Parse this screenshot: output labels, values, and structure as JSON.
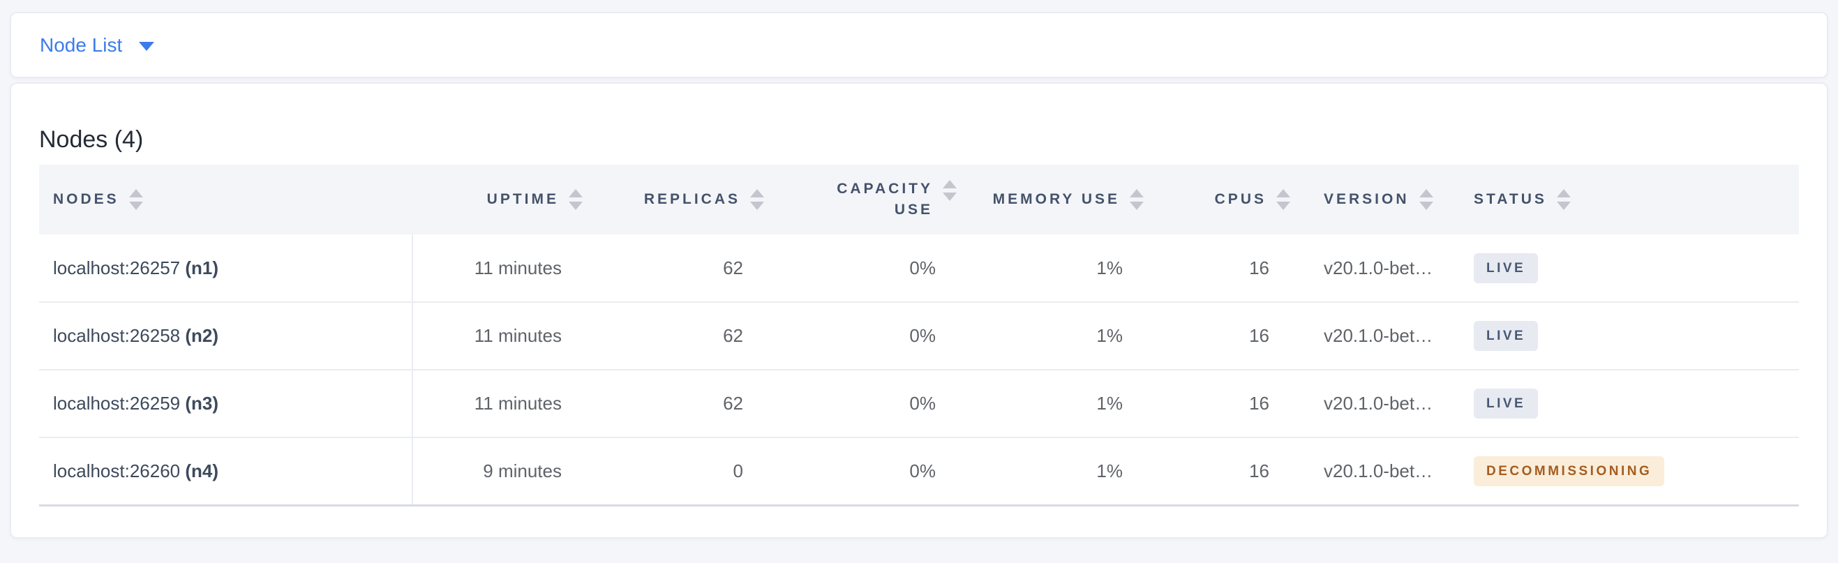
{
  "topbar": {
    "dropdown_label": "Node List",
    "dropdown_icon": "caret-down-icon"
  },
  "main": {
    "title": "Nodes (4)",
    "table": {
      "columns": [
        {
          "label": "NODES",
          "align": "left",
          "sort_icon": "sort-arrows-icon"
        },
        {
          "label": "UPTIME",
          "align": "right",
          "sort_icon": "sort-arrows-icon"
        },
        {
          "label": "REPLICAS",
          "align": "right",
          "sort_icon": "sort-arrows-icon"
        },
        {
          "label": "CAPACITY USE",
          "align": "right",
          "sort_icon": "sort-arrows-icon"
        },
        {
          "label": "MEMORY USE",
          "align": "right",
          "sort_icon": "sort-arrows-icon"
        },
        {
          "label": "CPUS",
          "align": "right",
          "sort_icon": "sort-arrows-icon"
        },
        {
          "label": "VERSION",
          "align": "left",
          "sort_icon": "sort-arrows-icon"
        },
        {
          "label": "STATUS",
          "align": "left",
          "sort_icon": "sort-arrows-icon"
        }
      ],
      "rows": [
        {
          "address": "localhost:26257",
          "node_id": "(n1)",
          "uptime": "11 minutes",
          "replicas": "62",
          "capacity_use": "0%",
          "memory_use": "1%",
          "cpus": "16",
          "version": "v20.1.0-bet…",
          "status": "LIVE",
          "status_type": "live"
        },
        {
          "address": "localhost:26258",
          "node_id": "(n2)",
          "uptime": "11 minutes",
          "replicas": "62",
          "capacity_use": "0%",
          "memory_use": "1%",
          "cpus": "16",
          "version": "v20.1.0-bet…",
          "status": "LIVE",
          "status_type": "live"
        },
        {
          "address": "localhost:26259",
          "node_id": "(n3)",
          "uptime": "11 minutes",
          "replicas": "62",
          "capacity_use": "0%",
          "memory_use": "1%",
          "cpus": "16",
          "version": "v20.1.0-bet…",
          "status": "LIVE",
          "status_type": "live"
        },
        {
          "address": "localhost:26260",
          "node_id": "(n4)",
          "uptime": "9 minutes",
          "replicas": "0",
          "capacity_use": "0%",
          "memory_use": "1%",
          "cpus": "16",
          "version": "v20.1.0-bet…",
          "status": "DECOMMISSIONING",
          "status_type": "decommissioning"
        }
      ]
    }
  },
  "colors": {
    "accent_blue": "#3B7CEC",
    "header_text": "#44526B",
    "live_badge_bg": "#E7EAF1",
    "live_badge_text": "#475873",
    "decommissioning_badge_bg": "#FAEEDA",
    "decommissioning_badge_text": "#A55C20"
  }
}
